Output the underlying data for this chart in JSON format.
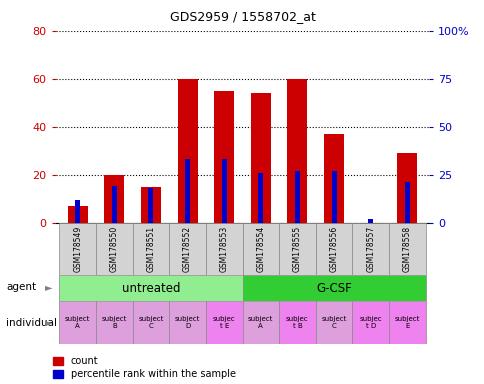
{
  "title": "GDS2959 / 1558702_at",
  "samples": [
    "GSM178549",
    "GSM178550",
    "GSM178551",
    "GSM178552",
    "GSM178553",
    "GSM178554",
    "GSM178555",
    "GSM178556",
    "GSM178557",
    "GSM178558"
  ],
  "count_values": [
    7,
    20,
    15,
    60,
    55,
    54,
    60,
    37,
    0,
    29
  ],
  "percentile_values": [
    12,
    19,
    18,
    33,
    33,
    26,
    27,
    27,
    2,
    21
  ],
  "ylim_left": [
    0,
    80
  ],
  "ylim_right": [
    0,
    100
  ],
  "yticks_left": [
    0,
    20,
    40,
    60,
    80
  ],
  "yticks_right": [
    0,
    25,
    50,
    75,
    100
  ],
  "agent_groups": [
    {
      "label": "untreated",
      "start": 0,
      "end": 5,
      "color": "#90EE90"
    },
    {
      "label": "G-CSF",
      "start": 5,
      "end": 10,
      "color": "#32CD32"
    }
  ],
  "individual_labels": [
    "subject\nA",
    "subject\nB",
    "subject\nC",
    "subject\nD",
    "subjec\nt E",
    "subject\nA",
    "subjec\nt B",
    "subject\nC",
    "subjec\nt D",
    "subject\nE"
  ],
  "individual_colors": [
    "#DDA0DD",
    "#DDA0DD",
    "#DDA0DD",
    "#DDA0DD",
    "#EE82EE",
    "#DDA0DD",
    "#EE82EE",
    "#DDA0DD",
    "#EE82EE",
    "#EE82EE"
  ],
  "bar_color_red": "#CC0000",
  "bar_color_blue": "#0000CC",
  "bar_width": 0.55,
  "background_color": "#FFFFFF",
  "tick_color_left": "#CC0000",
  "tick_color_right": "#0000CC",
  "sample_bg": "#D3D3D3"
}
